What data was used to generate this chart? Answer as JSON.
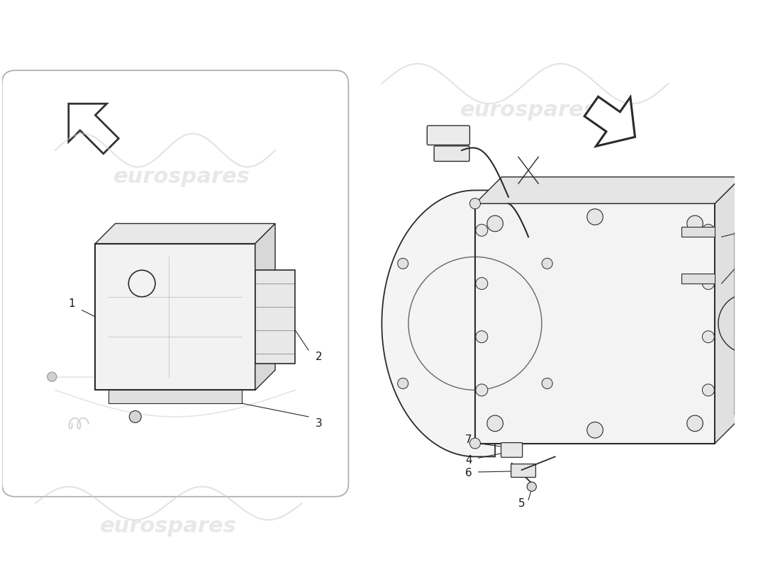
{
  "bg_color": "#ffffff",
  "watermark_text": "eurospares",
  "watermark_color": "#cccccc",
  "watermark_alpha": 0.45,
  "watermark_fontsize": 22,
  "line_color": "#2a2a2a",
  "label_color": "#1a1a1a",
  "label_fontsize": 10,
  "fig_width": 11.0,
  "fig_height": 8.0,
  "box_edge_color": "#999999",
  "box_face_color": "#f8f8f8",
  "part_face_color": "#f0f0f0",
  "part_edge_color": "#333333",
  "shadow_color": "#e0e0e0"
}
